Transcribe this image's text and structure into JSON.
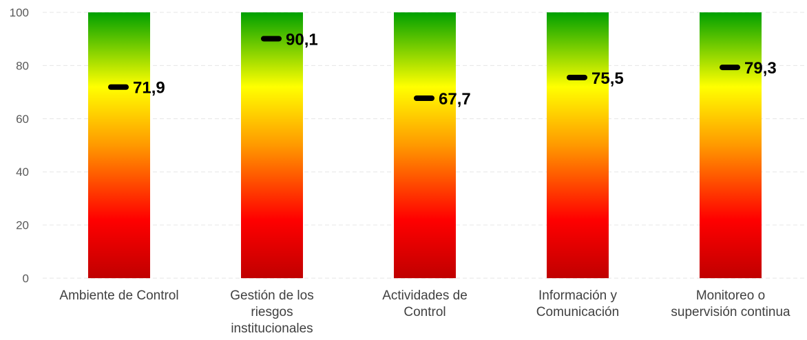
{
  "chart_data": {
    "type": "bar",
    "categories": [
      [
        "Ambiente de Control"
      ],
      [
        "Gestión de los",
        "riesgos",
        "institucionales"
      ],
      [
        "Actividades de",
        "Control"
      ],
      [
        "Información y",
        "Comunicación"
      ],
      [
        "Monitoreo o",
        "supervisión continua"
      ]
    ],
    "values": [
      71.9,
      90.1,
      67.7,
      75.5,
      79.3
    ],
    "value_labels": [
      "71,9",
      "90,1",
      "67,7",
      "75,5",
      "79,3"
    ],
    "yticks": [
      "0",
      "20",
      "40",
      "60",
      "80",
      "100"
    ],
    "ylim": [
      0,
      100
    ],
    "grid": true,
    "gradient_colors": {
      "bottom": "#c00000",
      "red": "#ff0000",
      "orange": "#ff9900",
      "yellow": "#ffff00",
      "green": "#00a000"
    },
    "marker_color": "#000000"
  }
}
